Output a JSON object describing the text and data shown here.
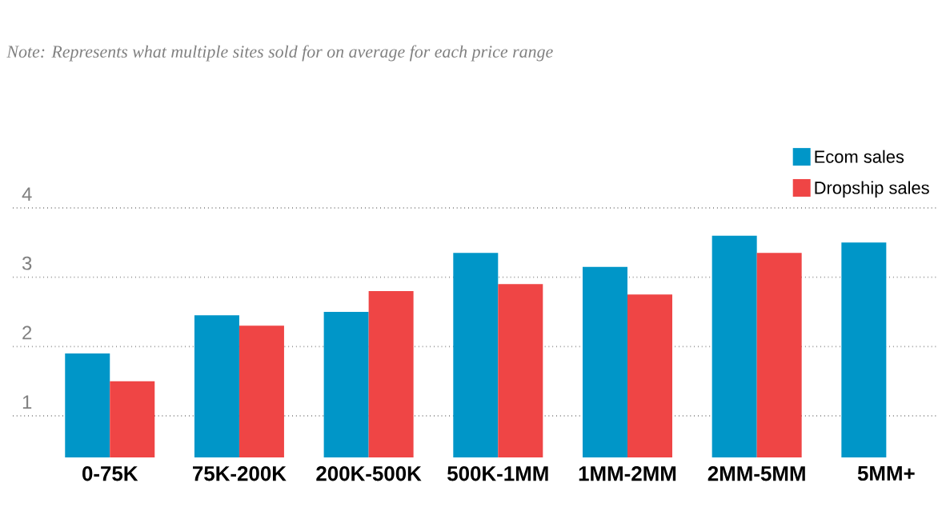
{
  "chart_data": {
    "type": "bar",
    "annotations": [
      "Note: Represents what multiple sites sold for on average for each price range"
    ],
    "categories": [
      "0-75K",
      "75K-200K",
      "200K-500K",
      "500K-1MM",
      "1MM-2MM",
      "2MM-5MM",
      "5MM+"
    ],
    "series": [
      {
        "name": "Ecom sales",
        "color": "#0096c8",
        "values": [
          1.9,
          2.45,
          2.5,
          3.35,
          3.15,
          3.6,
          3.5
        ]
      },
      {
        "name": "Dropship sales",
        "color": "#ef4545",
        "values": [
          1.5,
          2.3,
          2.8,
          2.9,
          2.75,
          3.35,
          null
        ]
      }
    ],
    "ylim": [
      0.4,
      4
    ],
    "yticks": [
      1,
      2,
      3,
      4
    ],
    "grid": "y",
    "legend": "top right"
  }
}
